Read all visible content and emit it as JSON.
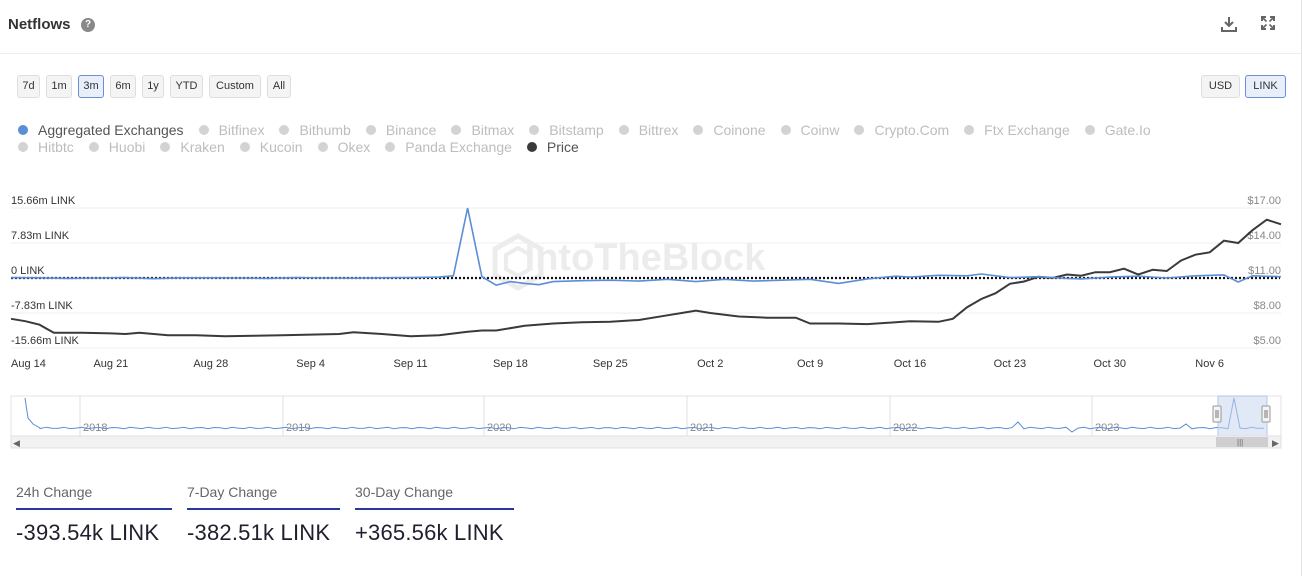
{
  "header": {
    "title": "Netflows",
    "help_label": "?"
  },
  "ranges": [
    "7d",
    "1m",
    "3m",
    "6m",
    "1y",
    "YTD",
    "Custom",
    "All"
  ],
  "active_range": "3m",
  "units": [
    "USD",
    "LINK"
  ],
  "active_unit": "LINK",
  "legend": {
    "row1": [
      {
        "label": "Aggregated Exchanges",
        "on": true,
        "color": "#5b8ed6"
      },
      {
        "label": "Bitfinex"
      },
      {
        "label": "Bithumb"
      },
      {
        "label": "Binance"
      },
      {
        "label": "Bitmax"
      },
      {
        "label": "Bitstamp"
      },
      {
        "label": "Bittrex"
      },
      {
        "label": "Coinone"
      },
      {
        "label": "Coinw"
      },
      {
        "label": "Crypto.Com"
      },
      {
        "label": "Ftx Exchange"
      },
      {
        "label": "Gate.Io"
      }
    ],
    "row2": [
      {
        "label": "Hitbtc"
      },
      {
        "label": "Huobi"
      },
      {
        "label": "Kraken"
      },
      {
        "label": "Kucoin"
      },
      {
        "label": "Okex"
      },
      {
        "label": "Panda Exchange"
      },
      {
        "label": "Price",
        "on": true,
        "color": "#3a3a3a"
      }
    ]
  },
  "chart_data": {
    "type": "line",
    "watermark": "IntoTheBlock",
    "x_ticks": [
      "Aug 14",
      "Aug 21",
      "Aug 28",
      "Sep 4",
      "Sep 11",
      "Sep 18",
      "Sep 25",
      "Oct 2",
      "Oct 9",
      "Oct 16",
      "Oct 23",
      "Oct 30",
      "Nov 6"
    ],
    "x_range_days": [
      0,
      89
    ],
    "y_left": {
      "ticks": [
        "15.66m LINK",
        "7.83m LINK",
        "0 LINK",
        "-7.83m LINK",
        "-15.66m LINK"
      ],
      "range": [
        -15.66,
        15.66
      ],
      "unit": "m LINK"
    },
    "y_right": {
      "ticks": [
        "$17.00",
        "$14.00",
        "$11.00",
        "$8.00",
        "$5.00"
      ],
      "range": [
        5,
        17
      ],
      "unit": "USD"
    },
    "series": [
      {
        "name": "Aggregated Exchanges",
        "axis": "left",
        "color": "#5b8ed6",
        "points": [
          [
            0,
            0.1
          ],
          [
            2,
            0.05
          ],
          [
            4,
            -0.1
          ],
          [
            6,
            0
          ],
          [
            8,
            0.1
          ],
          [
            10,
            -0.15
          ],
          [
            12,
            0.05
          ],
          [
            14,
            0.05
          ],
          [
            16,
            0
          ],
          [
            18,
            -0.1
          ],
          [
            20,
            0.1
          ],
          [
            22,
            0
          ],
          [
            24,
            -0.05
          ],
          [
            26,
            0.05
          ],
          [
            28,
            0.1
          ],
          [
            30,
            0.2
          ],
          [
            31,
            0.5
          ],
          [
            32,
            15.66
          ],
          [
            33,
            0.3
          ],
          [
            34,
            -1.6
          ],
          [
            35,
            -0.8
          ],
          [
            36,
            -1.2
          ],
          [
            37,
            -1.5
          ],
          [
            38,
            -0.8
          ],
          [
            40,
            -0.6
          ],
          [
            42,
            -0.5
          ],
          [
            44,
            -0.7
          ],
          [
            46,
            -0.3
          ],
          [
            48,
            -0.8
          ],
          [
            50,
            -0.3
          ],
          [
            52,
            -0.7
          ],
          [
            54,
            -0.5
          ],
          [
            56,
            -0.3
          ],
          [
            58,
            -1.2
          ],
          [
            60,
            -0.2
          ],
          [
            62,
            0.4
          ],
          [
            63,
            0.2
          ],
          [
            65,
            0.6
          ],
          [
            67,
            0.5
          ],
          [
            68,
            0.9
          ],
          [
            70,
            0.1
          ],
          [
            72,
            0.3
          ],
          [
            74,
            -0.1
          ],
          [
            75,
            -0.2
          ],
          [
            77,
            0.2
          ],
          [
            79,
            0.4
          ],
          [
            81,
            0
          ],
          [
            83,
            0.5
          ],
          [
            85,
            0.7
          ],
          [
            86,
            -0.9
          ],
          [
            87,
            0.5
          ],
          [
            89,
            0.3
          ]
        ]
      },
      {
        "name": "Price",
        "axis": "right",
        "color": "#3a3a3a",
        "points": [
          [
            0,
            7.5
          ],
          [
            1,
            7.3
          ],
          [
            2,
            7.0
          ],
          [
            3,
            6.3
          ],
          [
            5,
            6.3
          ],
          [
            7,
            6.25
          ],
          [
            8,
            6.2
          ],
          [
            9,
            6.3
          ],
          [
            11,
            6.1
          ],
          [
            13,
            6.1
          ],
          [
            15,
            6.0
          ],
          [
            17,
            6.05
          ],
          [
            19,
            6.1
          ],
          [
            21,
            6.15
          ],
          [
            23,
            6.2
          ],
          [
            24,
            6.35
          ],
          [
            26,
            6.2
          ],
          [
            28,
            6.0
          ],
          [
            30,
            6.1
          ],
          [
            32,
            6.4
          ],
          [
            33,
            6.5
          ],
          [
            34,
            6.5
          ],
          [
            36,
            6.9
          ],
          [
            38,
            7.1
          ],
          [
            40,
            7.2
          ],
          [
            42,
            7.25
          ],
          [
            44,
            7.4
          ],
          [
            46,
            7.8
          ],
          [
            47,
            8.0
          ],
          [
            48,
            8.2
          ],
          [
            49,
            8.0
          ],
          [
            51,
            7.7
          ],
          [
            53,
            7.6
          ],
          [
            55,
            7.6
          ],
          [
            56,
            7.1
          ],
          [
            58,
            7.1
          ],
          [
            60,
            7.05
          ],
          [
            62,
            7.2
          ],
          [
            63,
            7.3
          ],
          [
            65,
            7.25
          ],
          [
            66,
            7.5
          ],
          [
            67,
            8.5
          ],
          [
            68,
            9.2
          ],
          [
            69,
            9.7
          ],
          [
            70,
            10.5
          ],
          [
            71,
            10.7
          ],
          [
            72,
            11.1
          ],
          [
            73,
            11.0
          ],
          [
            74,
            11.3
          ],
          [
            75,
            11.2
          ],
          [
            76,
            11.5
          ],
          [
            77,
            11.5
          ],
          [
            78,
            11.8
          ],
          [
            79,
            11.3
          ],
          [
            80,
            11.7
          ],
          [
            81,
            11.6
          ],
          [
            82,
            12.5
          ],
          [
            83,
            13.0
          ],
          [
            84,
            13.2
          ],
          [
            85,
            14.2
          ],
          [
            86,
            14.0
          ],
          [
            87,
            15.1
          ],
          [
            88,
            16.0
          ],
          [
            89,
            15.6
          ]
        ]
      }
    ],
    "navigator": {
      "years": [
        "2018",
        "2019",
        "2020",
        "2021",
        "2022",
        "2023"
      ],
      "selection": "last 3 months"
    }
  },
  "stats": [
    {
      "label": "24h Change",
      "value": "-393.54k LINK"
    },
    {
      "label": "7-Day Change",
      "value": "-382.51k LINK"
    },
    {
      "label": "30-Day Change",
      "value": "+365.56k LINK"
    }
  ]
}
